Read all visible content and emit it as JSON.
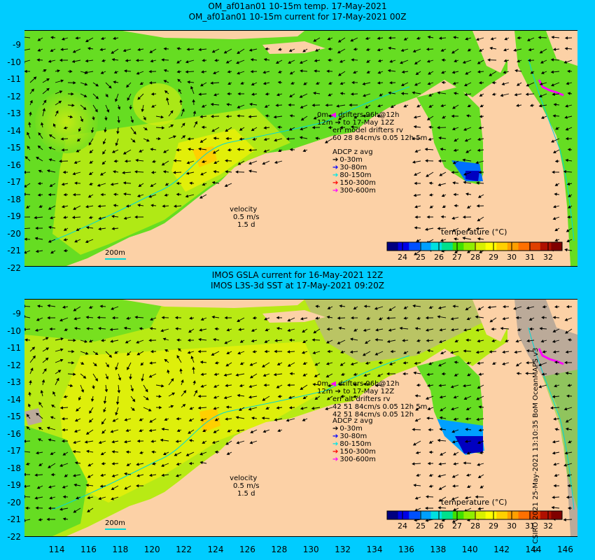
{
  "top": {
    "title_line1": "OM_af01an01 10-15m temp. 17-May-2021",
    "title_line2": "OM_af01an01 10-15m current for 17-May-2021 00Z",
    "drifters": {
      "line1": "0m",
      "line1b": "drifters 96h@12h",
      "line2": "12m",
      "line2b": "to 17-May 12Z",
      "line3": "err model drifters rv",
      "line4": "60 28 84cm/s 0.05 12h 5m"
    },
    "adcp": {
      "title": "ADCP z avg",
      "items": [
        {
          "label": "0-30m",
          "color": "#000000"
        },
        {
          "label": "30-80m",
          "color": "#0000ff"
        },
        {
          "label": "80-150m",
          "color": "#00e5e5"
        },
        {
          "label": "150-300m",
          "color": "#ff0000"
        },
        {
          "label": "300-600m",
          "color": "#ff00ff"
        }
      ]
    },
    "velocity": {
      "label": "velocity",
      "speed": "0.5 m/s",
      "time": "1.5 d"
    },
    "isobath": "200m"
  },
  "bottom": {
    "title_line1": "IMOS GSLA current for 16-May-2021 12Z",
    "title_line2": "IMOS L3S-3d SST at 17-May-2021 09:20Z",
    "drifters": {
      "line1": "0m",
      "line1b": "drifters 96h@12h",
      "line2": "12m",
      "line2b": "to 17-May 12Z",
      "line3": "err alt drifters rv",
      "line4": "42 51 84cm/s 0.05 12h 5m",
      "line5": "42 51 84cm/s 0.05 12h"
    },
    "adcp": {
      "title": "ADCP z avg",
      "items": [
        {
          "label": "0-30m",
          "color": "#000000"
        },
        {
          "label": "30-80m",
          "color": "#0000ff"
        },
        {
          "label": "80-150m",
          "color": "#00e5e5"
        },
        {
          "label": "150-300m",
          "color": "#ff0000"
        },
        {
          "label": "300-600m",
          "color": "#ff00ff"
        }
      ]
    },
    "velocity": {
      "label": "velocity",
      "speed": "0.5 m/s",
      "time": "1.5 d"
    },
    "isobath": "200m"
  },
  "colorbar": {
    "title": "temperature (°C)",
    "ticks": [
      "24",
      "25",
      "26",
      "27",
      "28",
      "29",
      "30",
      "31",
      "32"
    ],
    "colors": [
      "#000080",
      "#0000e6",
      "#0050ff",
      "#00a0ff",
      "#00e0e0",
      "#00e08c",
      "#40e000",
      "#90ee00",
      "#d8f000",
      "#ffff00",
      "#ffd000",
      "#ffa000",
      "#ff7000",
      "#e04000",
      "#b01000",
      "#800000"
    ]
  },
  "axes": {
    "lat_labels": [
      "-9",
      "-10",
      "-11",
      "-12",
      "-13",
      "-14",
      "-15",
      "-16",
      "-17",
      "-18",
      "-19",
      "-20",
      "-21",
      "-22"
    ],
    "lon_labels": [
      "114",
      "116",
      "118",
      "120",
      "122",
      "124",
      "126",
      "128",
      "130",
      "132",
      "134",
      "136",
      "138",
      "140",
      "142",
      "144",
      "146"
    ]
  },
  "credit": "© CSIRO 2021  25-May-2021 13:10:35 BoM OceanMAPS v3",
  "colors": {
    "background": "#00ccff",
    "land": "#fcd1a6",
    "ocean_warm": "#d8ee10",
    "ocean_mid": "#66dd22",
    "ocean_cool": "#0060ff",
    "missing": "#bbaa99"
  }
}
